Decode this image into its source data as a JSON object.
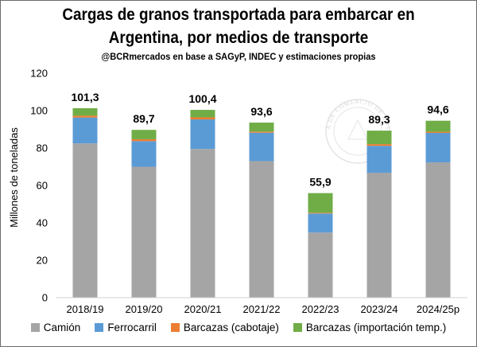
{
  "chart_data": {
    "type": "bar",
    "stacked": true,
    "title_line1": "Cargas de granos transportada para embarcar en",
    "title_line2": "Argentina, por medios de transporte",
    "subtitle": "@BCRmercados  en base a SAGyP, INDEC y estimaciones propias",
    "ylabel": "Millones de toneladas",
    "xlabel": "",
    "ylim": [
      0,
      120
    ],
    "yticks": [
      0,
      20,
      40,
      60,
      80,
      100,
      120
    ],
    "categories": [
      "2018/19",
      "2019/20",
      "2020/21",
      "2021/22",
      "2022/23",
      "2023/24",
      "2024/25p"
    ],
    "totals": [
      "101,3",
      "89,7",
      "100,4",
      "93,6",
      "55,9",
      "89,3",
      "94,6"
    ],
    "series": [
      {
        "name": "Camión",
        "color": "#a5a5a5",
        "values": [
          82.5,
          70.0,
          79.5,
          73.0,
          34.8,
          66.8,
          72.3
        ]
      },
      {
        "name": "Ferrocarril",
        "color": "#5b9bd5",
        "values": [
          13.8,
          13.7,
          15.8,
          15.2,
          10.2,
          14.4,
          15.8
        ]
      },
      {
        "name": "Barcazas (cabotaje)",
        "color": "#ed7d31",
        "values": [
          1.0,
          1.0,
          1.1,
          0.6,
          0.4,
          0.9,
          0.6
        ]
      },
      {
        "name": "Barcazas (importación temp.)",
        "color": "#70ad47",
        "values": [
          4.0,
          5.0,
          4.0,
          4.8,
          10.5,
          7.2,
          5.9
        ]
      }
    ],
    "grid": false,
    "legend_position": "bottom"
  },
  "watermark": {
    "text": "BOLSA DE COMERCIO DE ROSARIO"
  }
}
